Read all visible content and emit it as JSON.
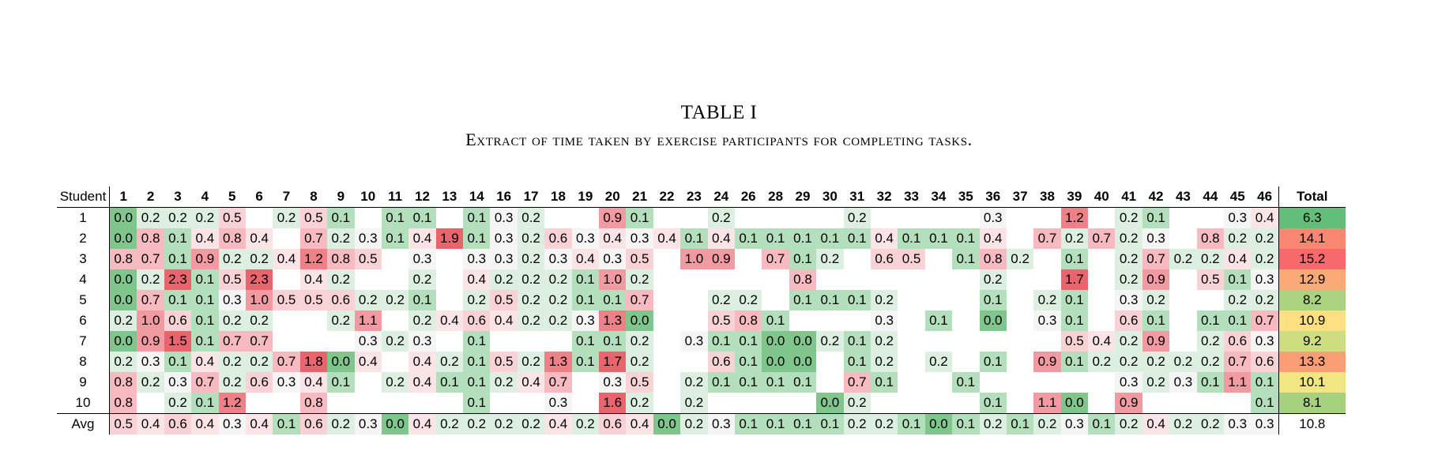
{
  "caption": {
    "label": "TABLE I",
    "subtitle": "Extract of time taken by exercise participants for completing tasks."
  },
  "table": {
    "row_header": "Student",
    "total_header": "Total",
    "columns": [
      "1",
      "2",
      "3",
      "4",
      "5",
      "6",
      "7",
      "8",
      "9",
      "10",
      "11",
      "12",
      "13",
      "14",
      "16",
      "17",
      "18",
      "19",
      "20",
      "21",
      "22",
      "23",
      "24",
      "26",
      "28",
      "29",
      "30",
      "31",
      "32",
      "33",
      "34",
      "35",
      "36",
      "37",
      "38",
      "39",
      "40",
      "41",
      "42",
      "43",
      "44",
      "45",
      "46"
    ],
    "rows": [
      {
        "label": "1",
        "values": [
          "0.0",
          "0.2",
          "0.2",
          "0.2",
          "0.5",
          "",
          "0.2",
          "0.5",
          "0.1",
          "",
          "0.1",
          "0.1",
          "",
          "0.1",
          "0.3",
          "0.2",
          "",
          "",
          "0.9",
          "0.1",
          "",
          "",
          "0.2",
          "",
          "",
          "",
          "",
          "0.2",
          "",
          "",
          "",
          "",
          "0.3",
          "",
          "",
          "1.2",
          "",
          "0.2",
          "0.1",
          "",
          "",
          "0.3",
          "0.4"
        ],
        "total": "6.3"
      },
      {
        "label": "2",
        "values": [
          "0.0",
          "0.8",
          "0.1",
          "0.4",
          "0.8",
          "0.4",
          "",
          "0.7",
          "0.2",
          "0.3",
          "0.1",
          "0.4",
          "1.9",
          "0.1",
          "0.3",
          "0.2",
          "0.6",
          "0.3",
          "0.4",
          "0.3",
          "0.4",
          "0.1",
          "0.4",
          "0.1",
          "0.1",
          "0.1",
          "0.1",
          "0.1",
          "0.4",
          "0.1",
          "0.1",
          "0.1",
          "0.4",
          "",
          "0.7",
          "0.2",
          "0.7",
          "0.2",
          "0.3",
          "",
          "0.8",
          "0.2",
          "0.2"
        ],
        "total": "14.1"
      },
      {
        "label": "3",
        "values": [
          "0.8",
          "0.7",
          "0.1",
          "0.9",
          "0.2",
          "0.2",
          "0.4",
          "1.2",
          "0.8",
          "0.5",
          "",
          "0.3",
          "",
          "0.3",
          "0.3",
          "0.2",
          "0.3",
          "0.4",
          "0.3",
          "0.5",
          "",
          "1.0",
          "0.9",
          "",
          "0.7",
          "0.1",
          "0.2",
          "",
          "0.6",
          "0.5",
          "",
          "0.1",
          "0.8",
          "0.2",
          "",
          "0.1",
          "",
          "0.2",
          "0.7",
          "0.2",
          "0.2",
          "0.4",
          "0.2"
        ],
        "total": "15.2"
      },
      {
        "label": "4",
        "values": [
          "0.0",
          "0.2",
          "2.3",
          "0.1",
          "0.5",
          "2.3",
          "",
          "0.4",
          "0.2",
          "",
          "",
          "0.2",
          "",
          "0.4",
          "0.2",
          "0.2",
          "0.2",
          "0.1",
          "1.0",
          "0.2",
          "",
          "",
          "",
          "",
          "",
          "0.8",
          "",
          "",
          "",
          "",
          "",
          "",
          "0.2",
          "",
          "",
          "1.7",
          "",
          "0.2",
          "0.9",
          "",
          "0.5",
          "0.1",
          "0.3"
        ],
        "total": "12.9"
      },
      {
        "label": "5",
        "values": [
          "0.0",
          "0.7",
          "0.1",
          "0.1",
          "0.3",
          "1.0",
          "0.5",
          "0.5",
          "0.6",
          "0.2",
          "0.2",
          "0.1",
          "",
          "0.2",
          "0.5",
          "0.2",
          "0.2",
          "0.1",
          "0.1",
          "0.7",
          "",
          "",
          "0.2",
          "0.2",
          "",
          "0.1",
          "0.1",
          "0.1",
          "0.2",
          "",
          "",
          "",
          "0.1",
          "",
          "0.2",
          "0.1",
          "",
          "0.3",
          "0.2",
          "",
          "",
          "0.2",
          "0.2"
        ],
        "total": "8.2"
      },
      {
        "label": "6",
        "values": [
          "0.2",
          "1.0",
          "0.6",
          "0.1",
          "0.2",
          "0.2",
          "",
          "",
          "0.2",
          "1.1",
          "",
          "0.2",
          "0.4",
          "0.6",
          "0.4",
          "0.2",
          "0.2",
          "0.3",
          "1.3",
          "0.0",
          "",
          "",
          "0.5",
          "0.8",
          "0.1",
          "",
          "",
          "",
          "0.3",
          "",
          "0.1",
          "",
          "0.0",
          "",
          "0.3",
          "0.1",
          "",
          "0.6",
          "0.1",
          "",
          "0.1",
          "0.1",
          "0.7"
        ],
        "total": "10.9"
      },
      {
        "label": "7",
        "values": [
          "0.0",
          "0.9",
          "1.5",
          "0.1",
          "0.7",
          "0.7",
          "",
          "",
          "",
          "0.3",
          "0.2",
          "0.3",
          "",
          "0.1",
          "",
          "",
          "",
          "0.1",
          "0.1",
          "0.2",
          "",
          "0.3",
          "0.1",
          "0.1",
          "0.0",
          "0.0",
          "0.2",
          "0.1",
          "0.2",
          "",
          "",
          "",
          "",
          "",
          "",
          "0.5",
          "0.4",
          "0.2",
          "0.9",
          "",
          "0.2",
          "0.6",
          "0.3"
        ],
        "total": "9.2"
      },
      {
        "label": "8",
        "values": [
          "0.2",
          "0.3",
          "0.1",
          "0.4",
          "0.2",
          "0.2",
          "0.7",
          "1.8",
          "0.0",
          "0.4",
          "",
          "0.4",
          "0.2",
          "0.1",
          "0.5",
          "0.2",
          "1.3",
          "0.1",
          "1.7",
          "0.2",
          "",
          "",
          "0.6",
          "0.1",
          "0.0",
          "0.0",
          "",
          "0.1",
          "0.2",
          "",
          "0.2",
          "",
          "0.1",
          "",
          "0.9",
          "0.1",
          "0.2",
          "0.2",
          "0.2",
          "0.2",
          "0.2",
          "0.7",
          "0.6"
        ],
        "total": "13.3"
      },
      {
        "label": "9",
        "values": [
          "0.8",
          "0.2",
          "0.3",
          "0.7",
          "0.2",
          "0.6",
          "0.3",
          "0.4",
          "0.1",
          "",
          "0.2",
          "0.4",
          "0.1",
          "0.1",
          "0.2",
          "0.4",
          "0.7",
          "",
          "0.3",
          "0.5",
          "",
          "0.2",
          "0.1",
          "0.1",
          "0.1",
          "0.1",
          "",
          "0.7",
          "0.1",
          "",
          "",
          "0.1",
          "",
          "",
          "",
          "",
          "",
          "0.3",
          "0.2",
          "0.3",
          "0.1",
          "1.1",
          "0.1"
        ],
        "total": "10.1"
      },
      {
        "label": "10",
        "values": [
          "0.8",
          "",
          "0.2",
          "0.1",
          "1.2",
          "",
          "",
          "0.8",
          "",
          "",
          "",
          "",
          "",
          "0.1",
          "",
          "",
          "0.3",
          "",
          "1.6",
          "0.2",
          "",
          "0.2",
          "",
          "",
          "",
          "",
          "0.0",
          "0.2",
          "",
          "",
          "",
          "",
          "0.1",
          "",
          "1.1",
          "0.0",
          "",
          "0.9",
          "",
          "",
          "",
          "",
          "0.1"
        ],
        "total": "8.1"
      }
    ],
    "avg": {
      "label": "Avg",
      "values": [
        "0.5",
        "0.4",
        "0.6",
        "0.4",
        "0.3",
        "0.4",
        "0.1",
        "0.6",
        "0.2",
        "0.3",
        "0.0",
        "0.4",
        "0.2",
        "0.2",
        "0.2",
        "0.2",
        "0.4",
        "0.2",
        "0.6",
        "0.4",
        "0.0",
        "0.2",
        "0.3",
        "0.1",
        "0.1",
        "0.1",
        "0.1",
        "0.2",
        "0.2",
        "0.1",
        "0.0",
        "0.1",
        "0.2",
        "0.1",
        "0.2",
        "0.3",
        "0.1",
        "0.2",
        "0.4",
        "0.2",
        "0.2",
        "0.3",
        "0.3"
      ],
      "total": "10.8"
    }
  }
}
